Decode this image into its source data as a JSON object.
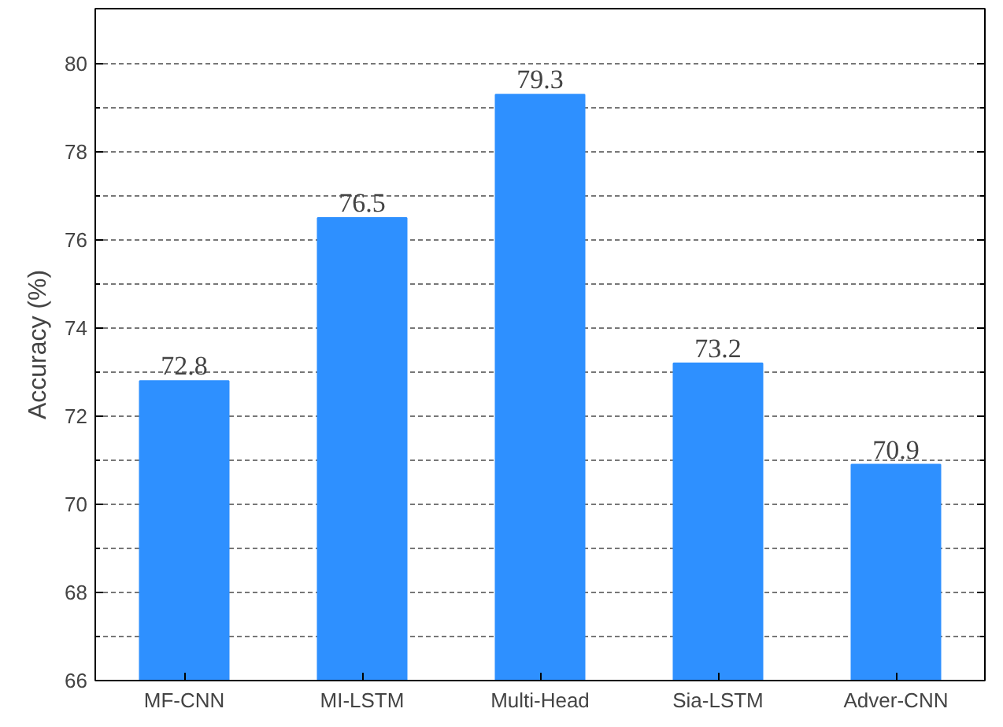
{
  "chart_data": {
    "type": "bar",
    "ylabel": "Accuracy (%)",
    "categories": [
      "MF-CNN",
      "MI-LSTM",
      "Multi-Head",
      "Sia-LSTM",
      "Adver-CNN"
    ],
    "values": [
      72.8,
      76.5,
      79.3,
      73.2,
      70.9
    ],
    "color": "#2e90ff",
    "ylim": [
      66,
      81.25
    ],
    "yticks": [
      66,
      68,
      70,
      72,
      74,
      76,
      78,
      80
    ],
    "grid": true,
    "data_labels": true
  }
}
